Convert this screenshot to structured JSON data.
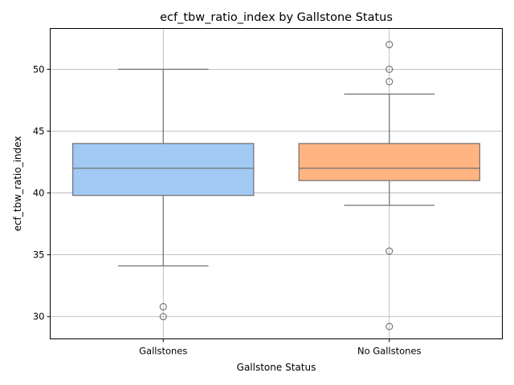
{
  "chart_data": {
    "type": "box",
    "title": "ecf_tbw_ratio_index by Gallstone Status",
    "xlabel": "Gallstone Status",
    "ylabel": "ecf_tbw_ratio_index",
    "categories": [
      "Gallstones",
      "No Gallstones"
    ],
    "ylim": [
      28.2,
      53.3
    ],
    "yticks": [
      30,
      35,
      40,
      45,
      50
    ],
    "grid": true,
    "boxes": [
      {
        "category": "Gallstones",
        "whisker_low": 34.1,
        "q1": 39.8,
        "median": 42.0,
        "q3": 44.0,
        "whisker_high": 50.0,
        "fliers": [
          30.8,
          30.0
        ],
        "color": "#a1c9f4"
      },
      {
        "category": "No Gallstones",
        "whisker_low": 39.0,
        "q1": 41.0,
        "median": 42.0,
        "q3": 44.0,
        "whisker_high": 48.0,
        "fliers": [
          52.0,
          50.0,
          49.0,
          35.3,
          29.2
        ],
        "color": "#ffb482"
      }
    ]
  }
}
